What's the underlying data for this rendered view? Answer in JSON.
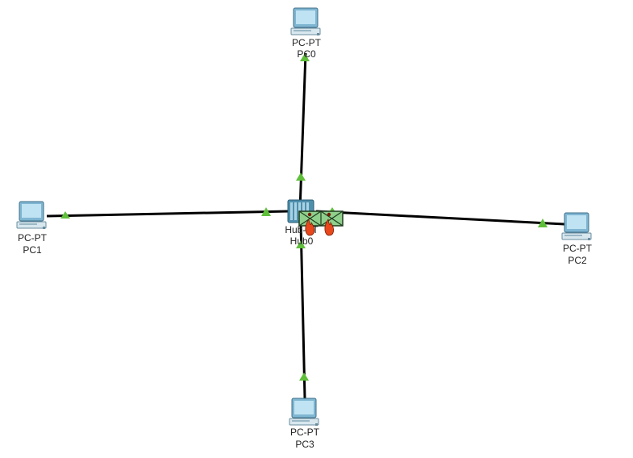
{
  "colors": {
    "link": "#000000",
    "link_up_indicator": "#5fbf3a",
    "pc_body": "#7fb6d2",
    "pc_screen": "#bfe3f2",
    "hub_body": "#4f8fae",
    "collision_box": "#8fd08c",
    "collision_flame": "#e8481c"
  },
  "devices": {
    "pc0": {
      "model": "PC-PT",
      "name": "PC0",
      "icon": "desktop-pc-icon"
    },
    "pc1": {
      "model": "PC-PT",
      "name": "PC1",
      "icon": "desktop-pc-icon"
    },
    "pc2": {
      "model": "PC-PT",
      "name": "PC2",
      "icon": "desktop-pc-icon"
    },
    "pc3": {
      "model": "PC-PT",
      "name": "PC3",
      "icon": "desktop-pc-icon"
    },
    "hub0": {
      "model": "Hub-PT",
      "model_shown": "Hub-PT",
      "name": "Hub0",
      "icon": "hub-icon"
    }
  },
  "links": [
    {
      "from": "hub0",
      "to": "pc0",
      "status": "up"
    },
    {
      "from": "hub0",
      "to": "pc1",
      "status": "up"
    },
    {
      "from": "hub0",
      "to": "pc2",
      "status": "up"
    },
    {
      "from": "hub0",
      "to": "pc3",
      "status": "up"
    }
  ],
  "simulation": {
    "event": "collision",
    "packets_colliding": 2,
    "icon": "collision-envelope-icon"
  }
}
